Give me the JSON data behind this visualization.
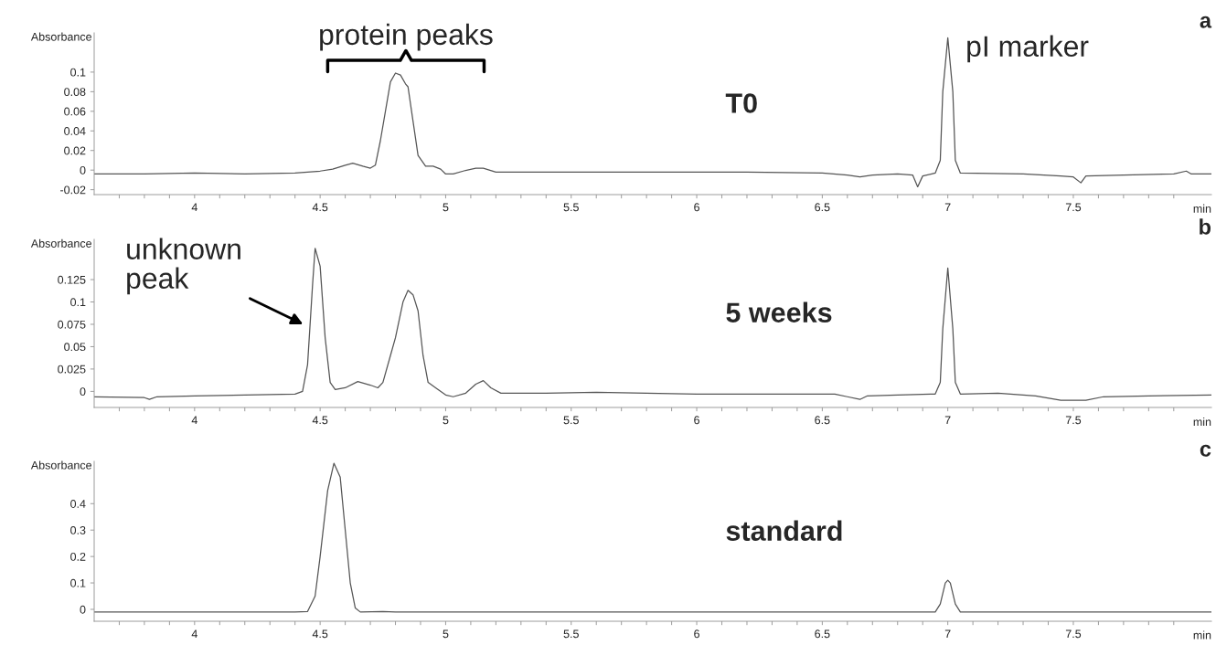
{
  "chart_data": [
    {
      "type": "line",
      "title": "a",
      "xlabel": "min",
      "ylabel": "Absorbance",
      "x": [
        3.6,
        3.8,
        4.0,
        4.2,
        4.4,
        4.5,
        4.55,
        4.6,
        4.63,
        4.67,
        4.7,
        4.72,
        4.74,
        4.76,
        4.78,
        4.8,
        4.82,
        4.84,
        4.85,
        4.87,
        4.89,
        4.92,
        4.95,
        4.98,
        5.0,
        5.03,
        5.07,
        5.12,
        5.15,
        5.2,
        5.4,
        5.8,
        6.2,
        6.5,
        6.6,
        6.65,
        6.7,
        6.8,
        6.86,
        6.88,
        6.9,
        6.95,
        6.97,
        6.98,
        7.0,
        7.02,
        7.03,
        7.05,
        7.3,
        7.45,
        7.5,
        7.53,
        7.55,
        7.7,
        7.9,
        7.95,
        7.97,
        8.05
      ],
      "series": [
        {
          "color": "#555555",
          "values": [
            -0.004,
            -0.004,
            -0.003,
            -0.004,
            -0.003,
            -0.001,
            0.001,
            0.005,
            0.007,
            0.004,
            0.002,
            0.005,
            0.03,
            0.06,
            0.09,
            0.099,
            0.097,
            0.088,
            0.085,
            0.05,
            0.015,
            0.004,
            0.004,
            0.001,
            -0.004,
            -0.004,
            -0.001,
            0.002,
            0.002,
            -0.002,
            -0.002,
            -0.002,
            -0.002,
            -0.003,
            -0.005,
            -0.007,
            -0.005,
            -0.004,
            -0.005,
            -0.017,
            -0.006,
            -0.003,
            0.01,
            0.08,
            0.135,
            0.08,
            0.01,
            -0.003,
            -0.004,
            -0.006,
            -0.007,
            -0.013,
            -0.006,
            -0.005,
            -0.004,
            -0.001,
            -0.004,
            -0.004
          ]
        }
      ],
      "xlim": [
        3.6,
        8.05
      ],
      "ylim": [
        -0.025,
        0.14
      ],
      "xticks": [
        {
          "value": 3.7,
          "label": null
        },
        {
          "value": 3.8,
          "label": null
        },
        {
          "value": 3.9,
          "label": null
        },
        4,
        {
          "value": 4.1,
          "label": null
        },
        {
          "value": 4.2,
          "label": null
        },
        {
          "value": 4.3,
          "label": null
        },
        {
          "value": 4.4,
          "label": null
        },
        4.5,
        {
          "value": 4.6,
          "label": null
        },
        {
          "value": 4.7,
          "label": null
        },
        {
          "value": 4.8,
          "label": null
        },
        {
          "value": 4.9,
          "label": null
        },
        5,
        {
          "value": 5.1,
          "label": null
        },
        {
          "value": 5.2,
          "label": null
        },
        {
          "value": 5.3,
          "label": null
        },
        {
          "value": 5.4,
          "label": null
        },
        5.5,
        {
          "value": 5.6,
          "label": null
        },
        {
          "value": 5.7,
          "label": null
        },
        {
          "value": 5.8,
          "label": null
        },
        {
          "value": 5.9,
          "label": null
        },
        6,
        {
          "value": 6.1,
          "label": null
        },
        {
          "value": 6.2,
          "label": null
        },
        {
          "value": 6.3,
          "label": null
        },
        {
          "value": 6.4,
          "label": null
        },
        6.5,
        {
          "value": 6.6,
          "label": null
        },
        {
          "value": 6.7,
          "label": null
        },
        {
          "value": 6.8,
          "label": null
        },
        {
          "value": 6.9,
          "label": null
        },
        7,
        {
          "value": 7.1,
          "label": null
        },
        {
          "value": 7.2,
          "label": null
        },
        {
          "value": 7.3,
          "label": null
        },
        {
          "value": 7.4,
          "label": null
        },
        7.5,
        {
          "value": 7.6,
          "label": null
        },
        {
          "value": 7.7,
          "label": null
        },
        {
          "value": 7.8,
          "label": null
        },
        {
          "value": 7.9,
          "label": null
        }
      ],
      "yticks": [
        -0.02,
        0,
        0.02,
        0.04,
        0.06,
        0.08,
        0.1
      ],
      "annotations": [
        "protein peaks",
        {
          "text": "pI marker",
          "x": 7.0,
          "y": 0.135
        },
        "T0"
      ]
    },
    {
      "type": "line",
      "title": "b",
      "xlabel": "min",
      "ylabel": "Absorbance",
      "x": [
        3.6,
        3.8,
        3.82,
        3.85,
        4.0,
        4.2,
        4.4,
        4.43,
        4.45,
        4.47,
        4.48,
        4.5,
        4.52,
        4.54,
        4.56,
        4.6,
        4.65,
        4.7,
        4.73,
        4.75,
        4.78,
        4.8,
        4.83,
        4.85,
        4.87,
        4.89,
        4.91,
        4.93,
        4.96,
        5.0,
        5.03,
        5.08,
        5.12,
        5.15,
        5.18,
        5.22,
        5.4,
        5.6,
        6.0,
        6.4,
        6.55,
        6.6,
        6.65,
        6.68,
        6.8,
        6.95,
        6.97,
        6.98,
        7.0,
        7.02,
        7.03,
        7.05,
        7.2,
        7.35,
        7.45,
        7.55,
        7.62,
        7.8,
        8.05
      ],
      "series": [
        {
          "color": "#555555",
          "values": [
            -0.006,
            -0.007,
            -0.009,
            -0.006,
            -0.005,
            -0.004,
            -0.003,
            0.0,
            0.03,
            0.12,
            0.16,
            0.14,
            0.06,
            0.01,
            0.002,
            0.004,
            0.011,
            0.007,
            0.004,
            0.01,
            0.04,
            0.06,
            0.1,
            0.113,
            0.108,
            0.09,
            0.04,
            0.01,
            0.004,
            -0.004,
            -0.006,
            -0.002,
            0.008,
            0.012,
            0.004,
            -0.002,
            -0.002,
            -0.001,
            -0.003,
            -0.003,
            -0.003,
            -0.006,
            -0.009,
            -0.005,
            -0.004,
            -0.003,
            0.01,
            0.07,
            0.138,
            0.07,
            0.01,
            -0.003,
            -0.002,
            -0.005,
            -0.01,
            -0.01,
            -0.006,
            -0.005,
            -0.004
          ]
        }
      ],
      "xlim": [
        3.6,
        8.05
      ],
      "ylim": [
        -0.018,
        0.17
      ],
      "xticks": [
        {
          "value": 3.7,
          "label": null
        },
        {
          "value": 3.8,
          "label": null
        },
        {
          "value": 3.9,
          "label": null
        },
        4,
        {
          "value": 4.1,
          "label": null
        },
        {
          "value": 4.2,
          "label": null
        },
        {
          "value": 4.3,
          "label": null
        },
        {
          "value": 4.4,
          "label": null
        },
        4.5,
        {
          "value": 4.6,
          "label": null
        },
        {
          "value": 4.7,
          "label": null
        },
        {
          "value": 4.8,
          "label": null
        },
        {
          "value": 4.9,
          "label": null
        },
        5,
        {
          "value": 5.1,
          "label": null
        },
        {
          "value": 5.2,
          "label": null
        },
        {
          "value": 5.3,
          "label": null
        },
        {
          "value": 5.4,
          "label": null
        },
        5.5,
        {
          "value": 5.6,
          "label": null
        },
        {
          "value": 5.7,
          "label": null
        },
        {
          "value": 5.8,
          "label": null
        },
        {
          "value": 5.9,
          "label": null
        },
        6,
        {
          "value": 6.1,
          "label": null
        },
        {
          "value": 6.2,
          "label": null
        },
        {
          "value": 6.3,
          "label": null
        },
        {
          "value": 6.4,
          "label": null
        },
        6.5,
        {
          "value": 6.6,
          "label": null
        },
        {
          "value": 6.7,
          "label": null
        },
        {
          "value": 6.8,
          "label": null
        },
        {
          "value": 6.9,
          "label": null
        },
        7,
        {
          "value": 7.1,
          "label": null
        },
        {
          "value": 7.2,
          "label": null
        },
        {
          "value": 7.3,
          "label": null
        },
        {
          "value": 7.4,
          "label": null
        },
        7.5,
        {
          "value": 7.6,
          "label": null
        },
        {
          "value": 7.7,
          "label": null
        },
        {
          "value": 7.8,
          "label": null
        },
        {
          "value": 7.9,
          "label": null
        }
      ],
      "yticks": [
        0,
        0.025,
        0.05,
        0.075,
        0.1,
        0.125
      ],
      "annotations": [
        "unknown peak",
        "5 weeks"
      ]
    },
    {
      "type": "line",
      "title": "c",
      "xlabel": "min",
      "ylabel": "Absorbance",
      "x": [
        3.6,
        4.4,
        4.45,
        4.48,
        4.5,
        4.53,
        4.555,
        4.58,
        4.6,
        4.62,
        4.64,
        4.66,
        4.75,
        4.8,
        5.5,
        6.95,
        6.97,
        6.99,
        7.0,
        7.01,
        7.03,
        7.05,
        8.05
      ],
      "series": [
        {
          "color": "#555555",
          "values": [
            -0.01,
            -0.01,
            -0.008,
            0.05,
            0.2,
            0.45,
            0.553,
            0.5,
            0.3,
            0.1,
            0.005,
            -0.01,
            -0.008,
            -0.01,
            -0.01,
            -0.01,
            0.02,
            0.1,
            0.11,
            0.1,
            0.02,
            -0.01,
            -0.01
          ]
        }
      ],
      "xlim": [
        3.6,
        8.05
      ],
      "ylim": [
        -0.045,
        0.56
      ],
      "xticks": [
        {
          "value": 3.7,
          "label": null
        },
        {
          "value": 3.8,
          "label": null
        },
        {
          "value": 3.9,
          "label": null
        },
        4,
        {
          "value": 4.1,
          "label": null
        },
        {
          "value": 4.2,
          "label": null
        },
        {
          "value": 4.3,
          "label": null
        },
        {
          "value": 4.4,
          "label": null
        },
        4.5,
        {
          "value": 4.6,
          "label": null
        },
        {
          "value": 4.7,
          "label": null
        },
        {
          "value": 4.8,
          "label": null
        },
        {
          "value": 4.9,
          "label": null
        },
        5,
        {
          "value": 5.1,
          "label": null
        },
        {
          "value": 5.2,
          "label": null
        },
        {
          "value": 5.3,
          "label": null
        },
        {
          "value": 5.4,
          "label": null
        },
        5.5,
        {
          "value": 5.6,
          "label": null
        },
        {
          "value": 5.7,
          "label": null
        },
        {
          "value": 5.8,
          "label": null
        },
        {
          "value": 5.9,
          "label": null
        },
        6,
        {
          "value": 6.1,
          "label": null
        },
        {
          "value": 6.2,
          "label": null
        },
        {
          "value": 6.3,
          "label": null
        },
        {
          "value": 6.4,
          "label": null
        },
        6.5,
        {
          "value": 6.6,
          "label": null
        },
        {
          "value": 6.7,
          "label": null
        },
        {
          "value": 6.8,
          "label": null
        },
        {
          "value": 6.9,
          "label": null
        },
        7,
        {
          "value": 7.1,
          "label": null
        },
        {
          "value": 7.2,
          "label": null
        },
        {
          "value": 7.3,
          "label": null
        },
        {
          "value": 7.4,
          "label": null
        },
        7.5,
        {
          "value": 7.6,
          "label": null
        },
        {
          "value": 7.7,
          "label": null
        },
        {
          "value": 7.8,
          "label": null
        },
        {
          "value": 7.9,
          "label": null
        }
      ],
      "yticks": [
        0,
        0.1,
        0.2,
        0.3,
        0.4
      ],
      "annotations": [
        "standard"
      ]
    }
  ]
}
